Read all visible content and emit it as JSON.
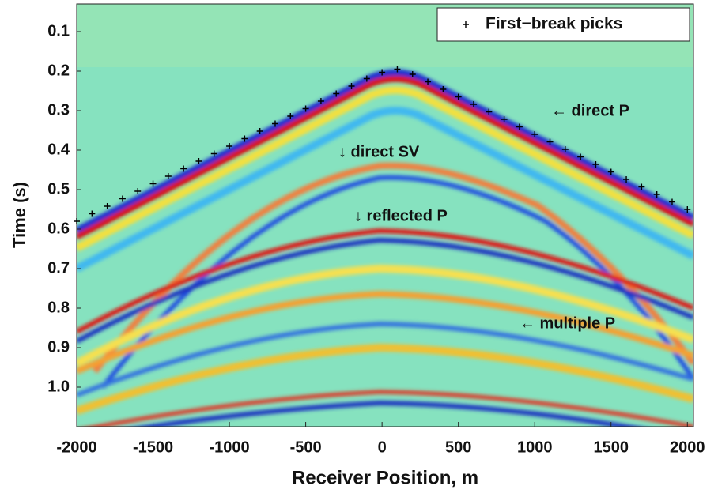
{
  "chart_data": {
    "type": "scatter",
    "xlabel": "Receiver Position, m",
    "ylabel": "Time (s)",
    "xlim": [
      -2000,
      2040
    ],
    "ylim": [
      0.03,
      1.1
    ],
    "y_inverted": true,
    "xticks": [
      -2000,
      -1500,
      -1000,
      -500,
      0,
      500,
      1000,
      1500,
      2000
    ],
    "yticks": [
      0.1,
      0.2,
      0.3,
      0.4,
      0.5,
      0.6,
      0.7,
      0.8,
      0.9,
      {
        "value": 1,
        "label": "1.0"
      }
    ],
    "legend": "upper right",
    "x": [
      -2000,
      -1900,
      -1800,
      -1700,
      -1600,
      -1500,
      -1400,
      -1300,
      -1200,
      -1100,
      -1000,
      -900,
      -800,
      -700,
      -600,
      -500,
      -400,
      -300,
      -200,
      -100,
      0,
      100,
      200,
      300,
      400,
      500,
      600,
      700,
      800,
      900,
      1000,
      1100,
      1200,
      1300,
      1400,
      1500,
      1600,
      1700,
      1800,
      1900,
      2000
    ],
    "series": [
      {
        "name": "First−break picks",
        "color": "#000000",
        "values": [
          0.58,
          0.561,
          0.542,
          0.523,
          0.504,
          0.485,
          0.466,
          0.447,
          0.428,
          0.409,
          0.39,
          0.371,
          0.352,
          0.333,
          0.314,
          0.295,
          0.276,
          0.257,
          0.238,
          0.219,
          0.203,
          0.195,
          0.208,
          0.227,
          0.246,
          0.265,
          0.284,
          0.303,
          0.322,
          0.341,
          0.36,
          0.379,
          0.398,
          0.417,
          0.436,
          0.455,
          0.474,
          0.493,
          0.512,
          0.531,
          0.55
        ]
      }
    ],
    "annotations": [
      {
        "text": "← direct P"
      },
      {
        "text": "↓ direct SV"
      },
      {
        "text": "↓ reflected P"
      },
      {
        "text": "← multiple P"
      }
    ]
  }
}
